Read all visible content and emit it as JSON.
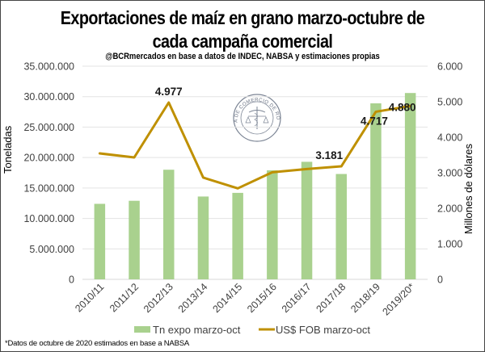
{
  "chart_data": {
    "type": "bar+line",
    "title_line1": "Exportaciones de maíz en grano marzo-octubre de",
    "title_line2": "cada campaña comercial",
    "subtitle": "@BCRmercados en base a datos de INDEC, NABSA y estimaciones propias",
    "categories": [
      "2010/11",
      "2011/12",
      "2012/13",
      "2013/14",
      "2014/15",
      "2015/16",
      "2016/17",
      "2017/18",
      "2018/19",
      "2019/20*"
    ],
    "series": [
      {
        "name": "Tn expo marzo-oct",
        "type": "bar",
        "axis": "left",
        "color": "#a9d18e",
        "values": [
          12400000,
          12900000,
          18000000,
          13600000,
          14200000,
          17900000,
          19300000,
          17300000,
          28900000,
          30600000
        ]
      },
      {
        "name": "US$ FOB marzo-oct",
        "type": "line",
        "axis": "right",
        "color": "#bf9000",
        "values": [
          3545,
          3432,
          4977,
          2864,
          2561,
          3015,
          3106,
          3181,
          4717,
          4880
        ]
      }
    ],
    "data_labels": [
      {
        "category": "2012/13",
        "text": "4.977"
      },
      {
        "category": "2017/18",
        "text": "3.181"
      },
      {
        "category": "2018/19",
        "text": "4.717"
      },
      {
        "category": "2019/20*",
        "text": "4.880"
      }
    ],
    "left_axis": {
      "label": "Toneladas",
      "range": [
        0,
        35000000
      ],
      "ticks": [
        0,
        5000000,
        10000000,
        15000000,
        20000000,
        25000000,
        30000000,
        35000000
      ],
      "tick_labels": [
        "0",
        "5.000.000",
        "10.000.000",
        "15.000.000",
        "20.000.000",
        "25.000.000",
        "30.000.000",
        "35.000.000"
      ]
    },
    "right_axis": {
      "label": "Millones de dólares",
      "range": [
        0,
        6000
      ],
      "ticks": [
        0,
        1000,
        2000,
        3000,
        4000,
        5000,
        6000
      ],
      "tick_labels": [
        "0",
        "1.000",
        "2.000",
        "3.000",
        "4.000",
        "5.000",
        "6.000"
      ]
    },
    "grid": true,
    "legend": {
      "position": "bottom",
      "entries": [
        "Tn expo marzo-oct",
        "US$ FOB marzo-oct"
      ]
    },
    "watermark": "BOLSA DE COMERCIO DE ROSARIO",
    "footnote": "*Datos de octubre de 2020  estimados en base a NABSA"
  }
}
